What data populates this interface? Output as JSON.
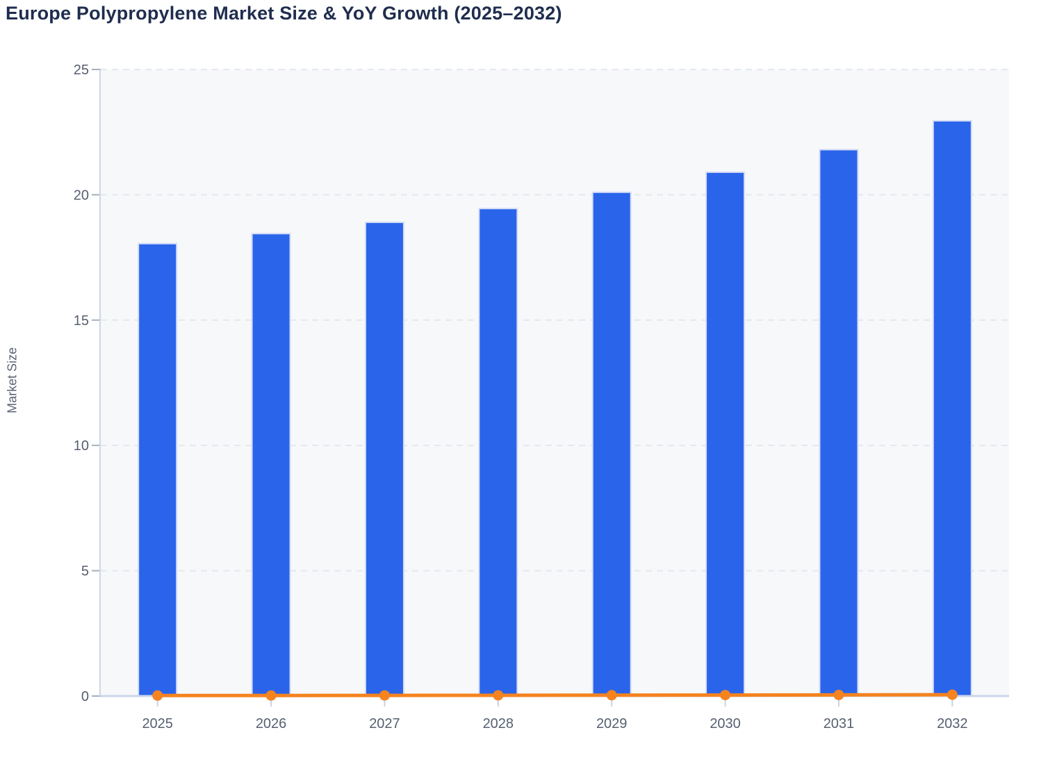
{
  "title": "Europe Polypropylene Market Size & YoY Growth (2025–2032)",
  "y_axis": {
    "label": "Market Size",
    "tick_labels": [
      "0",
      "5",
      "10",
      "15",
      "20",
      "25"
    ],
    "ticks": [
      0,
      5,
      10,
      15,
      20,
      25
    ],
    "min": 0,
    "max": 25
  },
  "x_axis": {
    "categories": [
      "2025",
      "2026",
      "2027",
      "2028",
      "2029",
      "2030",
      "2031",
      "2032"
    ]
  },
  "chart_data": {
    "type": "combo",
    "title": "Europe Polypropylene Market Size & YoY Growth (2025–2032)",
    "categories": [
      "2025",
      "2026",
      "2027",
      "2028",
      "2029",
      "2030",
      "2031",
      "2032"
    ],
    "series": [
      {
        "name": "Market Size",
        "type": "bar",
        "color": "#2a64ea",
        "values": [
          18.05,
          18.45,
          18.9,
          19.45,
          20.1,
          20.9,
          21.8,
          22.95
        ]
      },
      {
        "name": "YoY Growth",
        "type": "line",
        "color": "#f5831f",
        "values": [
          0.02,
          0.022,
          0.025,
          0.029,
          0.034,
          0.039,
          0.044,
          0.053
        ]
      }
    ],
    "xlabel": "",
    "ylabel": "Market Size",
    "ylim": [
      0,
      25
    ],
    "grid": "horizontal-dashed",
    "legend_position": "none",
    "plot_background": "#f7f8fa"
  },
  "colors": {
    "bar": "#2a64ea",
    "bar_border": "#d4ddf7",
    "line": "#f5831f",
    "title_text": "#1f2d4e",
    "tick_text": "#566070",
    "axis_line": "#ccd6ea",
    "gridline": "#e4e7ee",
    "plot_bg": "#f7f8fa"
  }
}
